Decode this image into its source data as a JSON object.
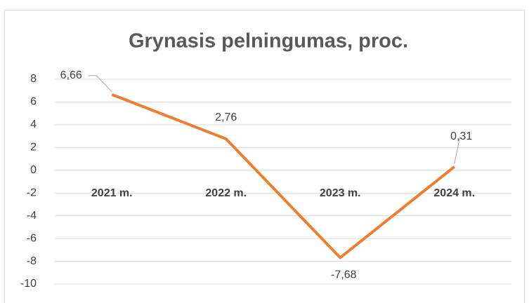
{
  "chart_data": {
    "type": "line",
    "title": "Grynasis pelningumas, proc.",
    "categories": [
      "2021 m.",
      "2022 m.",
      "2023 m.",
      "2024 m."
    ],
    "series": [
      {
        "name": "Grynasis pelningumas, proc.",
        "color": "#ed7d31",
        "values": [
          6.66,
          2.76,
          -7.68,
          0.31
        ],
        "value_labels": [
          "6,66",
          "2,76",
          "-7,68",
          "0,31"
        ]
      }
    ],
    "ylim": [
      -10,
      8
    ],
    "yticks": [
      -10,
      -8,
      -6,
      -4,
      -2,
      0,
      2,
      4,
      6,
      8
    ],
    "grid": true
  }
}
